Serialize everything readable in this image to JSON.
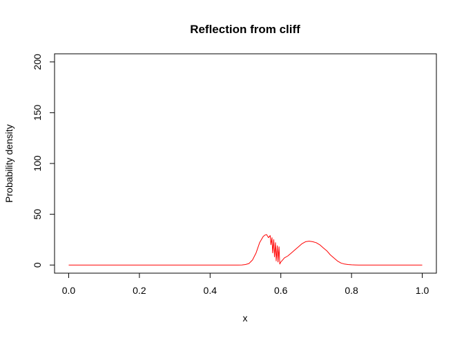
{
  "chart_data": {
    "type": "line",
    "title": "Reflection from cliff",
    "xlabel": "x",
    "ylabel": "Probability density",
    "xlim": [
      -0.04,
      1.04
    ],
    "ylim": [
      -8,
      208
    ],
    "x_ticks": [
      "0.0",
      "0.2",
      "0.4",
      "0.6",
      "0.8",
      "1.0"
    ],
    "y_ticks": [
      "0",
      "50",
      "100",
      "150",
      "200"
    ],
    "grid": false,
    "legend": "none",
    "series": [
      {
        "color": "#ff0000",
        "x": [
          0.0,
          0.1,
          0.2,
          0.3,
          0.4,
          0.45,
          0.48,
          0.49,
          0.5,
          0.51,
          0.52,
          0.53,
          0.54,
          0.55,
          0.555,
          0.56,
          0.565,
          0.57,
          0.572,
          0.575,
          0.577,
          0.58,
          0.582,
          0.585,
          0.587,
          0.59,
          0.592,
          0.595,
          0.597,
          0.6,
          0.605,
          0.61,
          0.62,
          0.63,
          0.64,
          0.65,
          0.66,
          0.67,
          0.68,
          0.69,
          0.7,
          0.71,
          0.72,
          0.73,
          0.74,
          0.75,
          0.76,
          0.77,
          0.78,
          0.79,
          0.8,
          0.81,
          0.82,
          0.84,
          0.9,
          1.0
        ],
        "y": [
          0,
          0,
          0,
          0,
          0,
          0,
          0,
          0.1,
          0.5,
          1.5,
          5,
          12,
          22,
          28,
          29.5,
          30,
          27,
          29,
          20,
          27,
          12,
          25,
          8,
          22,
          4,
          19,
          3,
          18,
          1,
          3,
          5,
          7,
          9,
          12,
          15,
          18,
          21,
          23,
          23.5,
          23,
          22,
          20,
          17,
          14,
          10,
          7,
          4,
          2,
          1,
          0.5,
          0.2,
          0.1,
          0,
          0,
          0,
          0
        ]
      }
    ]
  }
}
